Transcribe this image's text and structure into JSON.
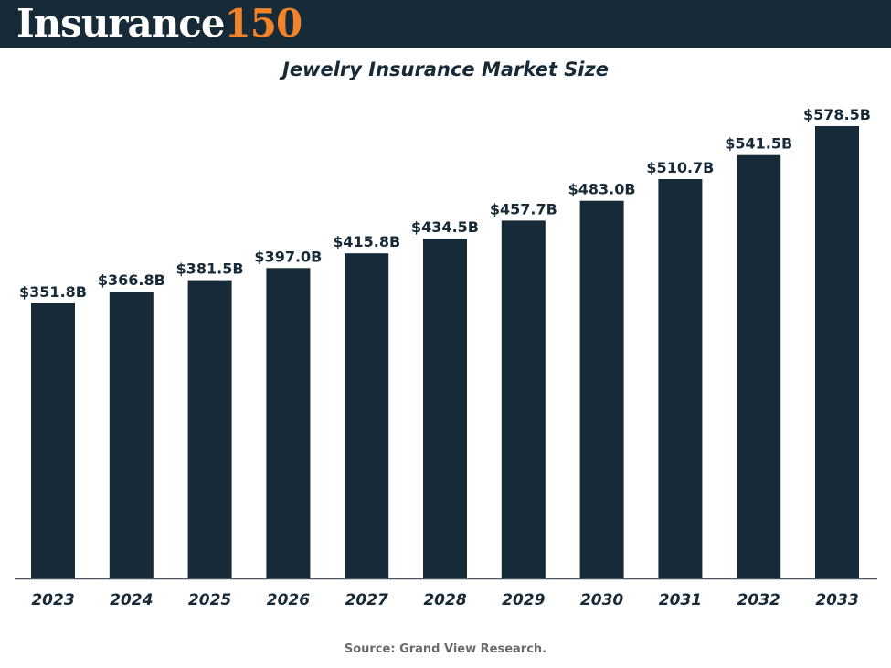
{
  "brand": {
    "logo_word": "Insurance",
    "logo_number": "150",
    "logo_word_color": "#ffffff",
    "logo_number_color": "#f2832a",
    "header_bg": "#172a37"
  },
  "chart_data": {
    "type": "bar",
    "title": "Jewelry Insurance Market Size",
    "xlabel": "",
    "ylabel": "",
    "categories": [
      "2023",
      "2024",
      "2025",
      "2026",
      "2027",
      "2028",
      "2029",
      "2030",
      "2031",
      "2032",
      "2033"
    ],
    "values": [
      351.8,
      366.8,
      381.5,
      397.0,
      415.8,
      434.5,
      457.7,
      483.0,
      510.7,
      541.5,
      578.5
    ],
    "data_labels": [
      "$351.8B",
      "$366.8B",
      "$381.5B",
      "$397.0B",
      "$415.8B",
      "$434.5B",
      "$457.7B",
      "$483.0B",
      "$510.7B",
      "$541.5B",
      "$578.5B"
    ],
    "unit": "$B",
    "ylim": [
      0,
      578.5
    ],
    "grid": false,
    "legend": "none",
    "bar_color": "#172a37"
  },
  "source": "Source: Grand View Research."
}
